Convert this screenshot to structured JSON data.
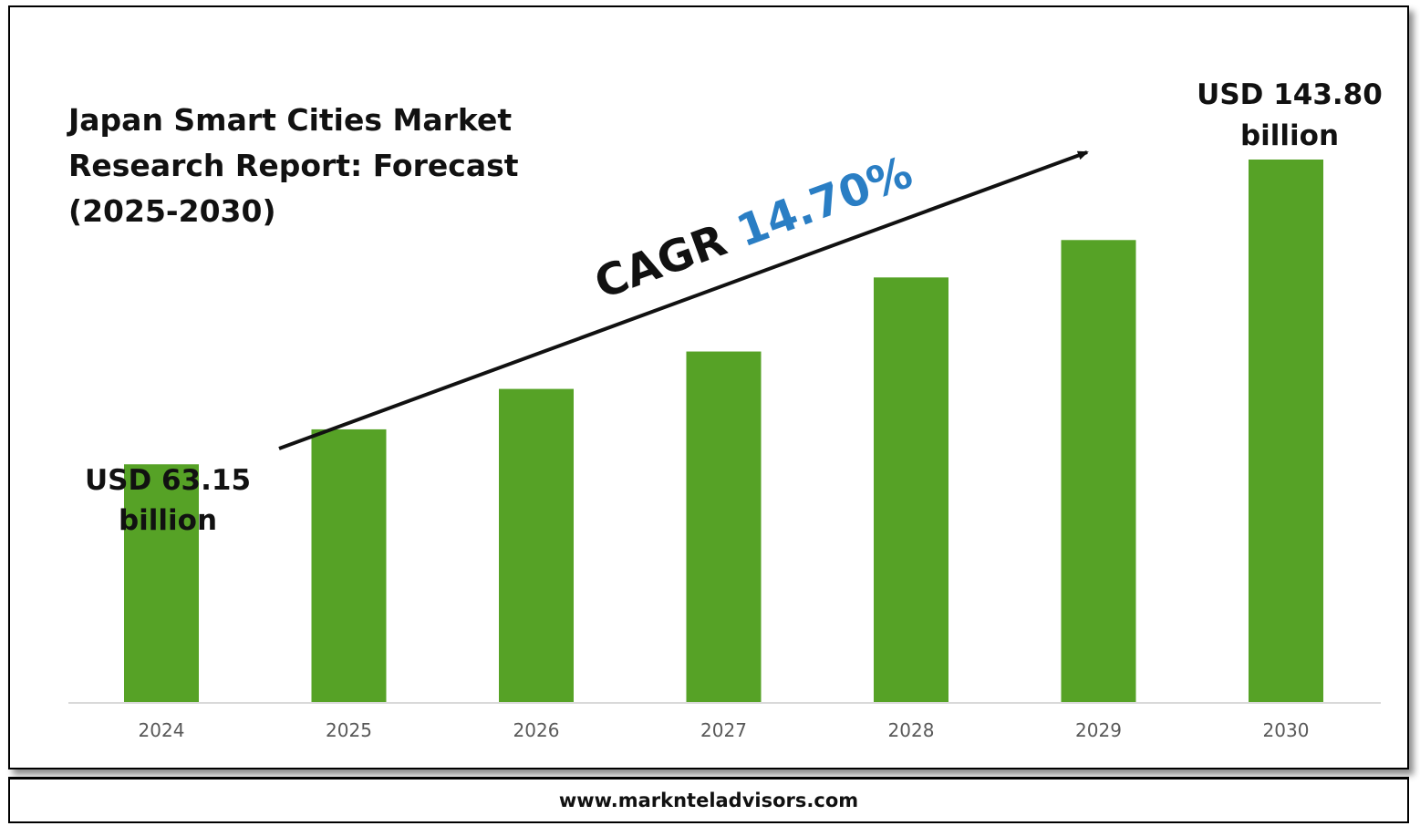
{
  "chart_data": {
    "type": "bar",
    "title_lines": [
      "Japan Smart Cities Market",
      "Research Report: Forecast",
      "(2025-2030)"
    ],
    "categories": [
      "2024",
      "2025",
      "2026",
      "2027",
      "2028",
      "2029",
      "2030"
    ],
    "values": [
      63.15,
      72.4,
      83.1,
      93.0,
      112.6,
      122.5,
      143.8
    ],
    "xlabel": "",
    "ylabel": "",
    "ylim": [
      0,
      155
    ],
    "bar_color": "#56a226",
    "grid": false,
    "annotations": {
      "start_label": [
        "USD 63.15",
        "billion"
      ],
      "end_label": [
        "USD 143.80",
        "billion"
      ],
      "cagr_prefix": "CAGR",
      "cagr_value": "14.70%",
      "cagr_color": "#2a7ec4"
    }
  },
  "footer": {
    "website": "www.marknteladvisors.com"
  }
}
